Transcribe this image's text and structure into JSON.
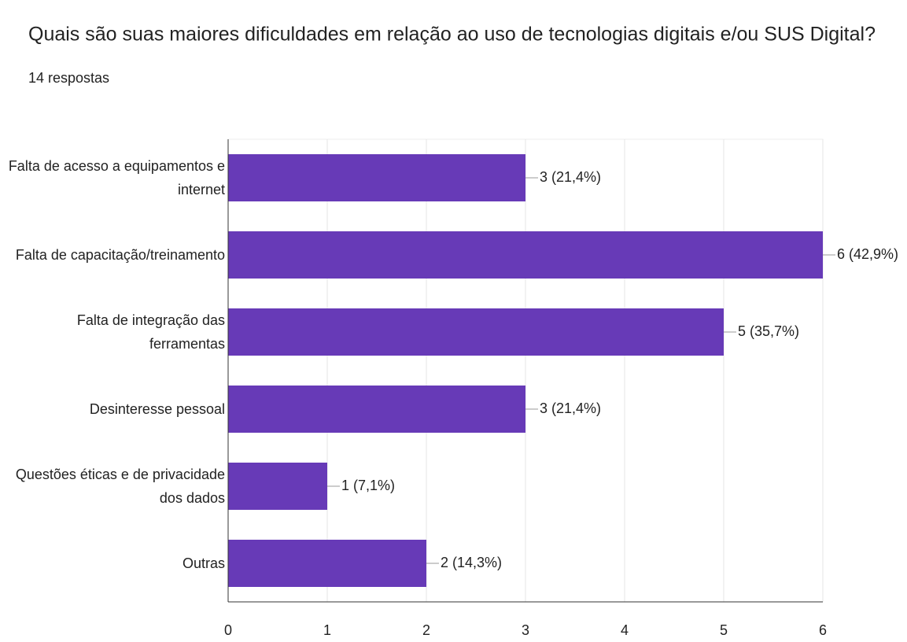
{
  "chart_data": {
    "type": "bar",
    "orientation": "horizontal",
    "title": "Quais são suas maiores dificuldades em relação ao uso de tecnologias digitais e/ou SUS Digital?",
    "subtitle": "14 respostas",
    "categories": [
      "Falta de acesso a equipamentos e internet",
      "Falta de capacitação/treinamento",
      "Falta de integração das ferramentas",
      "Desinteresse pessoal",
      "Questões éticas e de privacidade dos dados",
      "Outras"
    ],
    "values": [
      3,
      6,
      5,
      3,
      1,
      2
    ],
    "value_labels": [
      "3 (21,4%)",
      "6 (42,9%)",
      "5 (35,7%)",
      "3 (21,4%)",
      "1 (7,1%)",
      "2 (14,3%)"
    ],
    "color": "#673ab7",
    "xlim": [
      0,
      6
    ],
    "xticks": [
      0,
      1,
      2,
      3,
      4,
      5,
      6
    ],
    "grid": true
  }
}
